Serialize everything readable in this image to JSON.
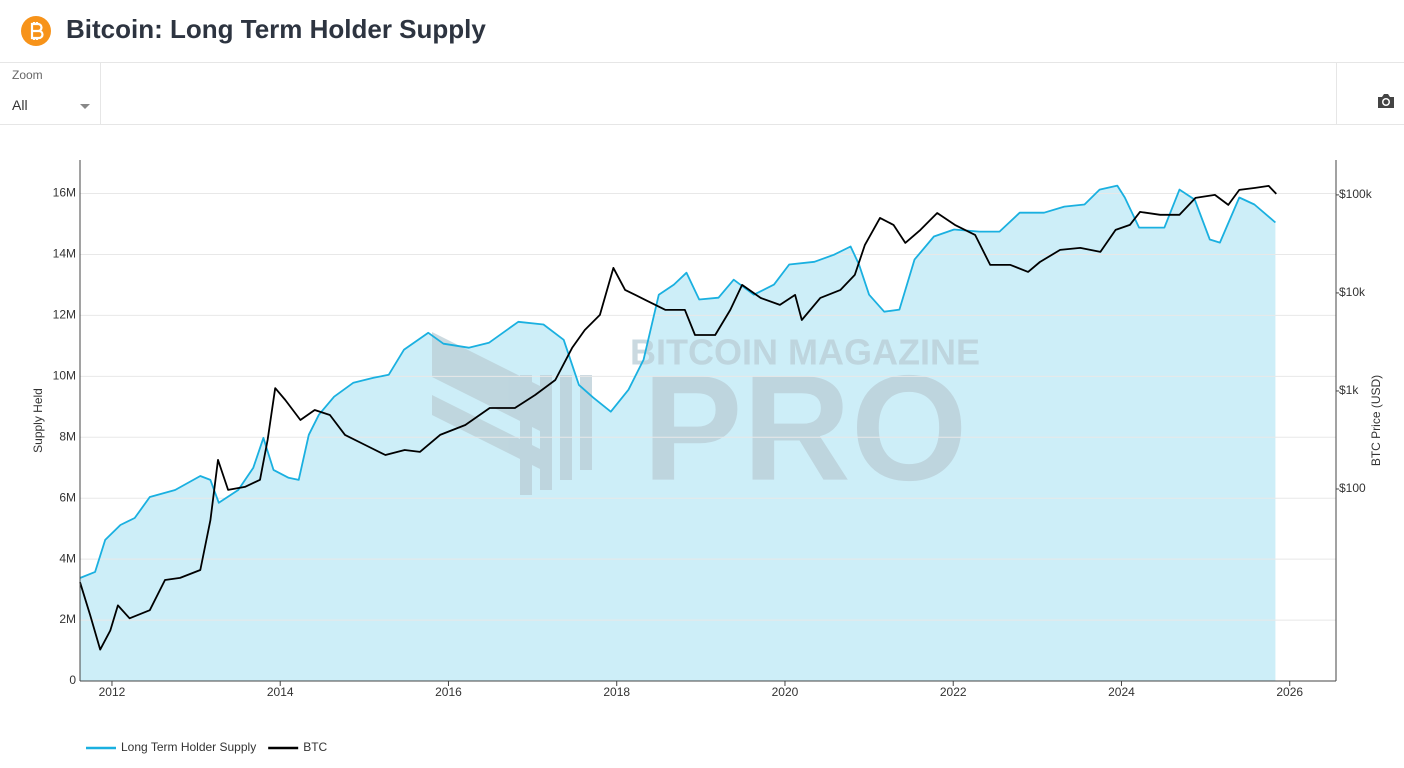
{
  "controls": {
    "zoom_label": "Zoom",
    "zoom_value": "All"
  },
  "watermark": [
    "BITCOIN MAGAZINE",
    "PRO"
  ],
  "chart_data": {
    "type": "line",
    "title": "Bitcoin: Long Term Holder Supply",
    "y_label": "Supply Held",
    "y2_label": "BTC Price (USD)",
    "xlim": [
      2011.62,
      2026.55
    ],
    "xticks": [
      2012,
      2014,
      2016,
      2018,
      2020,
      2022,
      2024,
      2026
    ],
    "ylim": [
      0,
      17100000
    ],
    "yticks": [
      0,
      {
        "value": 2000000,
        "label": "2M"
      },
      {
        "value": 4000000,
        "label": "4M"
      },
      {
        "value": 6000000,
        "label": "6M"
      },
      {
        "value": 8000000,
        "label": "8M"
      },
      {
        "value": 10000000,
        "label": "10M"
      },
      {
        "value": 12000000,
        "label": "12M"
      },
      {
        "value": 14000000,
        "label": "14M"
      },
      {
        "value": 16000000,
        "label": "16M"
      }
    ],
    "y2lim": [
      1.1,
      227000
    ],
    "y2_log": true,
    "y2ticks": [
      {
        "value": 100,
        "label": "$100"
      },
      {
        "value": 1000,
        "label": "$1k"
      },
      {
        "value": 10000,
        "label": "$10k"
      },
      {
        "value": 100000,
        "label": "$100k"
      }
    ],
    "grid": true,
    "legend": "bottom-left",
    "series": [
      {
        "name": "Long Term Holder Supply",
        "color": "#1ab0e0",
        "fill_color": "#cdeef8",
        "area": true,
        "x": [
          2011.62,
          2011.8,
          2011.92,
          2012.1,
          2012.27,
          2012.45,
          2012.75,
          2013.05,
          2013.17,
          2013.27,
          2013.5,
          2013.68,
          2013.8,
          2013.92,
          2014.1,
          2014.22,
          2014.34,
          2014.46,
          2014.64,
          2014.87,
          2015.11,
          2015.29,
          2015.47,
          2015.76,
          2015.94,
          2016.24,
          2016.48,
          2016.83,
          2017.13,
          2017.37,
          2017.55,
          2017.72,
          2017.93,
          2018.14,
          2018.32,
          2018.5,
          2018.68,
          2018.83,
          2018.98,
          2019.21,
          2019.39,
          2019.63,
          2019.87,
          2020.05,
          2020.35,
          2020.58,
          2020.78,
          2020.88,
          2021.0,
          2021.18,
          2021.36,
          2021.54,
          2021.77,
          2022.01,
          2022.31,
          2022.55,
          2022.79,
          2023.08,
          2023.32,
          2023.56,
          2023.74,
          2023.95,
          2024.04,
          2024.21,
          2024.51,
          2024.69,
          2024.87,
          2025.05,
          2025.17,
          2025.4,
          2025.58,
          2025.83
        ],
        "values": [
          3380000,
          3580000,
          4630000,
          5120000,
          5350000,
          6040000,
          6270000,
          6730000,
          6600000,
          5850000,
          6270000,
          7000000,
          7980000,
          6930000,
          6670000,
          6600000,
          8080000,
          8740000,
          9330000,
          9790000,
          9950000,
          10050000,
          10870000,
          11430000,
          11070000,
          10940000,
          11100000,
          11790000,
          11700000,
          11200000,
          9720000,
          9300000,
          8840000,
          9560000,
          10550000,
          12680000,
          13010000,
          13400000,
          12520000,
          12580000,
          13170000,
          12680000,
          13010000,
          13670000,
          13760000,
          13990000,
          14260000,
          13670000,
          12680000,
          12120000,
          12190000,
          13830000,
          14590000,
          14820000,
          14750000,
          14750000,
          15370000,
          15370000,
          15570000,
          15640000,
          16130000,
          16260000,
          15870000,
          14880000,
          14880000,
          16130000,
          15800000,
          14490000,
          14390000,
          15870000,
          15640000,
          15050000
        ]
      },
      {
        "name": "BTC",
        "color": "#000000",
        "axis": "y2",
        "x": [
          2011.62,
          2011.74,
          2011.86,
          2011.98,
          2012.07,
          2012.21,
          2012.45,
          2012.63,
          2012.81,
          2013.05,
          2013.17,
          2013.26,
          2013.38,
          2013.58,
          2013.76,
          2013.85,
          2013.94,
          2014.06,
          2014.24,
          2014.41,
          2014.59,
          2014.77,
          2015.01,
          2015.25,
          2015.48,
          2015.66,
          2015.9,
          2016.2,
          2016.49,
          2016.79,
          2017.03,
          2017.27,
          2017.47,
          2017.62,
          2017.8,
          2017.96,
          2018.1,
          2018.34,
          2018.58,
          2018.81,
          2018.93,
          2019.17,
          2019.35,
          2019.49,
          2019.71,
          2019.94,
          2020.12,
          2020.2,
          2020.42,
          2020.66,
          2020.83,
          2020.95,
          2021.13,
          2021.29,
          2021.43,
          2021.61,
          2021.81,
          2022.02,
          2022.26,
          2022.44,
          2022.68,
          2022.89,
          2023.03,
          2023.27,
          2023.51,
          2023.75,
          2023.93,
          2024.1,
          2024.22,
          2024.46,
          2024.69,
          2024.88,
          2025.11,
          2025.27,
          2025.4,
          2025.59,
          2025.75,
          2025.84
        ],
        "values": [
          11.2,
          5.2,
          2.3,
          3.6,
          6.5,
          4.8,
          5.8,
          11.8,
          12.4,
          14.9,
          48,
          198,
          98,
          105,
          124,
          316,
          1070,
          809,
          506,
          640,
          569,
          356,
          281,
          222,
          250,
          239,
          356,
          450,
          671,
          671,
          909,
          1294,
          2748,
          4190,
          5970,
          17990,
          10740,
          8490,
          6720,
          6720,
          3720,
          3720,
          6720,
          12080,
          8890,
          7550,
          9540,
          5300,
          8890,
          10740,
          15270,
          30900,
          58200,
          49400,
          32400,
          44000,
          65400,
          49400,
          39100,
          19300,
          19300,
          16400,
          20700,
          27500,
          28800,
          26200,
          44000,
          49400,
          67100,
          62600,
          62600,
          93200,
          100000,
          79100,
          112500,
          117800,
          123600,
          102400
        ]
      }
    ]
  }
}
